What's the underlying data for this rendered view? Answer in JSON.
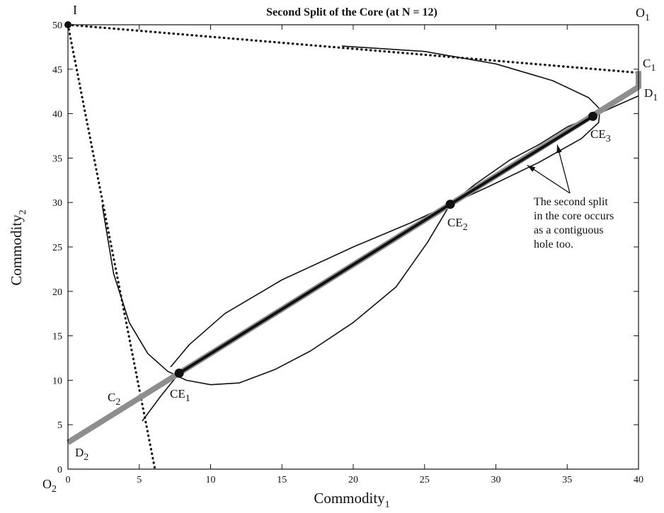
{
  "chart_data": {
    "type": "line",
    "title": "Second Split of the Core (at N = 12)",
    "xlabel": {
      "base": "Commodity",
      "sub": "1"
    },
    "ylabel": {
      "base": "Commodity",
      "sub": "2"
    },
    "xlim": [
      0,
      40
    ],
    "ylim": [
      0,
      50
    ],
    "xticks": [
      "0",
      "5",
      "10",
      "15",
      "20",
      "25",
      "30",
      "35",
      "40"
    ],
    "yticks": [
      "0",
      "5",
      "10",
      "15",
      "20",
      "25",
      "30",
      "35",
      "40",
      "45",
      "50"
    ],
    "grid": false,
    "lines": [
      {
        "name": "dotted-boundary-1",
        "style": "dotted",
        "points": [
          [
            0,
            50
          ],
          [
            40,
            44.6
          ]
        ]
      },
      {
        "name": "dotted-boundary-2",
        "style": "dotted",
        "points": [
          [
            0,
            50
          ],
          [
            6.1,
            0
          ]
        ]
      },
      {
        "name": "contract-curve",
        "style": "thick-gray",
        "points": [
          [
            0,
            3
          ],
          [
            40,
            43
          ]
        ]
      },
      {
        "name": "c1-d1-segment",
        "style": "thick-gray",
        "points": [
          [
            40,
            44.8
          ],
          [
            40,
            42.8
          ]
        ]
      },
      {
        "name": "core-segment-1",
        "style": "thick-black",
        "points": [
          [
            7.8,
            10.8
          ],
          [
            26.8,
            29.8
          ]
        ]
      },
      {
        "name": "core-segment-2",
        "style": "thick-black",
        "points": [
          [
            26.8,
            29.8
          ],
          [
            36.8,
            39.7
          ]
        ]
      },
      {
        "name": "indifference-upper-right",
        "style": "thin",
        "points": [
          [
            19.2,
            47.6
          ],
          [
            25,
            47.0
          ],
          [
            30,
            45.6
          ],
          [
            34,
            43.7
          ],
          [
            36.5,
            41.8
          ],
          [
            37.3,
            40.5
          ],
          [
            37.2,
            39.0
          ],
          [
            36,
            37.2
          ],
          [
            33,
            34.5
          ],
          [
            29.5,
            31.8
          ],
          [
            26.8,
            29.8
          ],
          [
            24,
            27.7
          ],
          [
            20,
            25
          ],
          [
            15,
            21.3
          ],
          [
            11,
            17.5
          ],
          [
            8.5,
            14
          ],
          [
            7.2,
            11.5
          ]
        ]
      },
      {
        "name": "indifference-lower-left",
        "style": "thin",
        "points": [
          [
            2.4,
            29.7
          ],
          [
            3.2,
            22
          ],
          [
            4.3,
            16.5
          ],
          [
            5.6,
            13
          ],
          [
            7,
            11
          ],
          [
            8.3,
            10
          ],
          [
            10,
            9.5
          ],
          [
            12,
            9.7
          ],
          [
            14.5,
            11.2
          ],
          [
            17,
            13.3
          ],
          [
            20,
            16.5
          ],
          [
            23,
            20.5
          ],
          [
            25.2,
            25.5
          ],
          [
            26.8,
            29.8
          ],
          [
            28.5,
            32
          ],
          [
            31,
            34.8
          ],
          [
            33,
            36.5
          ],
          [
            35,
            38.5
          ],
          [
            36.8,
            39.7
          ],
          [
            38.3,
            40.8
          ],
          [
            40,
            42
          ]
        ]
      },
      {
        "name": "short-indifference-ce1",
        "style": "thin",
        "points": [
          [
            5.2,
            5.4
          ],
          [
            6.5,
            8.2
          ],
          [
            7.8,
            10.8
          ]
        ]
      }
    ],
    "points": [
      {
        "label": "CE",
        "sub": "1",
        "x": 7.8,
        "y": 10.8
      },
      {
        "label": "CE",
        "sub": "2",
        "x": 26.8,
        "y": 29.8
      },
      {
        "label": "CE",
        "sub": "3",
        "x": 36.8,
        "y": 39.7
      },
      {
        "label": "I",
        "x": 0,
        "y": 50
      }
    ],
    "labels": {
      "I": "I",
      "O1": {
        "base": "O",
        "sub": "1"
      },
      "O2": {
        "base": "O",
        "sub": "2"
      },
      "C1": {
        "base": "C",
        "sub": "1"
      },
      "C2": {
        "base": "C",
        "sub": "2"
      },
      "D1": {
        "base": "D",
        "sub": "1"
      },
      "D2": {
        "base": "D",
        "sub": "2"
      }
    },
    "annotation": {
      "lines": [
        "The second split",
        "in the core occurs",
        "as a contiguous",
        "hole too."
      ],
      "arrow_targets": [
        [
          32.2,
          34.2
        ],
        [
          34.3,
          36.5
        ]
      ]
    }
  }
}
